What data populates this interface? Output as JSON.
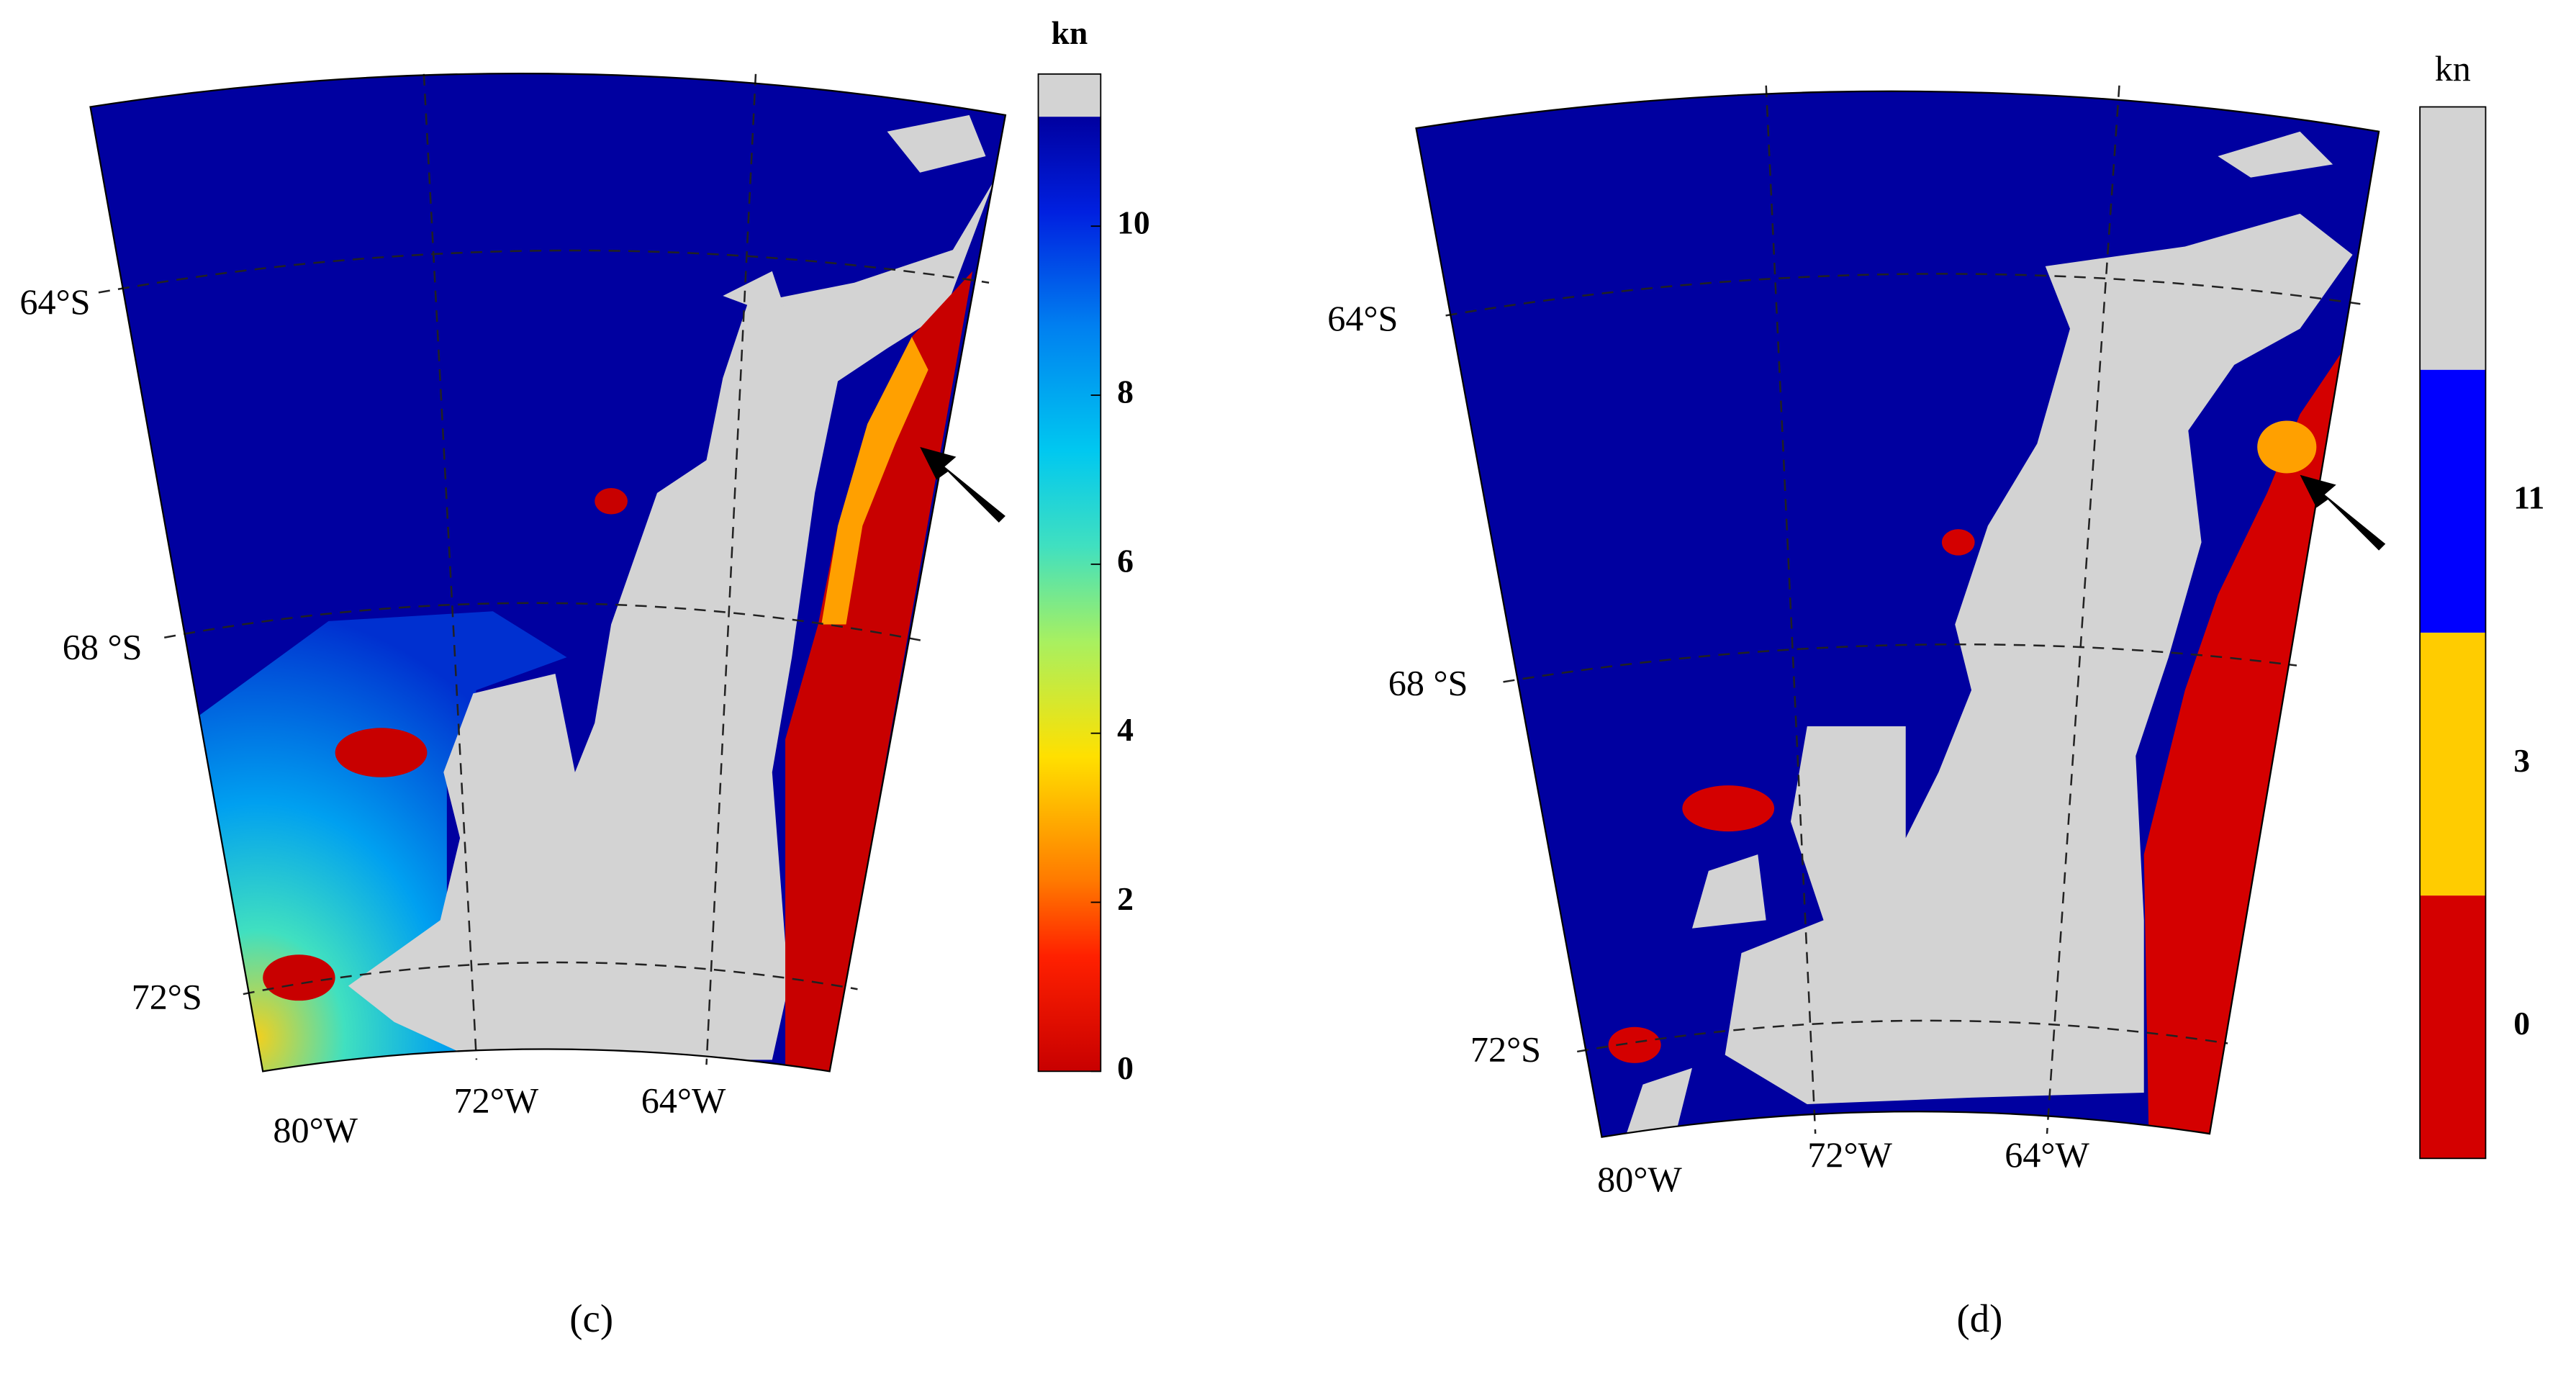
{
  "panels": [
    {
      "caption": "(c)",
      "lat_labels": [
        "64°S",
        "68 °S",
        "72°S"
      ],
      "lon_labels": [
        "80°W",
        "72°W",
        "64°W"
      ],
      "colorbar": {
        "unit": "kn",
        "range": [
          0,
          11.8
        ],
        "ticks": [
          0,
          2,
          4,
          6,
          8,
          10
        ]
      }
    },
    {
      "caption": "(d)",
      "lat_labels": [
        "64°S",
        "68 °S",
        "72°S"
      ],
      "lon_labels": [
        "80°W",
        "72°W",
        "64°W"
      ],
      "colorbar": {
        "unit": "kn",
        "classes": [
          0,
          3,
          11
        ],
        "colors": [
          "#d40000",
          "#ffcc00",
          "#0000ff",
          "#d3d3d3"
        ]
      }
    }
  ]
}
